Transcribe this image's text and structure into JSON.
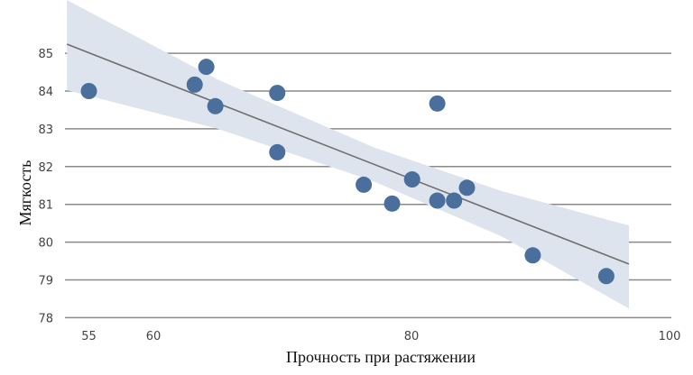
{
  "chart_data": {
    "type": "scatter",
    "title": "",
    "xlabel": "Прочность при растяжении",
    "ylabel": "Мягкость",
    "xlim": [
      53.3,
      100
    ],
    "ylim": [
      78,
      85
    ],
    "x_ticks": [
      55,
      60,
      80,
      100
    ],
    "y_ticks": [
      78,
      79,
      80,
      81,
      82,
      83,
      84,
      85
    ],
    "grid": "horizontal",
    "points": [
      {
        "x": 55.0,
        "y": 84.0
      },
      {
        "x": 63.2,
        "y": 84.17
      },
      {
        "x": 64.1,
        "y": 84.64
      },
      {
        "x": 64.8,
        "y": 83.6
      },
      {
        "x": 69.6,
        "y": 83.95
      },
      {
        "x": 69.6,
        "y": 82.38
      },
      {
        "x": 76.3,
        "y": 81.52
      },
      {
        "x": 78.5,
        "y": 81.02
      },
      {
        "x": 80.05,
        "y": 81.66
      },
      {
        "x": 82.0,
        "y": 83.67
      },
      {
        "x": 82.0,
        "y": 81.1
      },
      {
        "x": 83.3,
        "y": 81.1
      },
      {
        "x": 84.3,
        "y": 81.44
      },
      {
        "x": 89.4,
        "y": 79.65
      },
      {
        "x": 95.1,
        "y": 79.1
      }
    ],
    "regression_line": {
      "x": [
        53.3,
        96.85
      ],
      "y": [
        85.24,
        79.42
      ]
    },
    "confidence_band": {
      "x": [
        53.3,
        65,
        77,
        87,
        96.85
      ],
      "upper": [
        86.41,
        84.3,
        82.52,
        81.35,
        80.44
      ],
      "lower": [
        84.02,
        83.0,
        81.62,
        80.15,
        78.24
      ]
    },
    "colors": {
      "points": "#4a6f9c",
      "line": "#6e6e6e",
      "band": "#dde4ee",
      "grid": "#8a8a8a"
    }
  }
}
